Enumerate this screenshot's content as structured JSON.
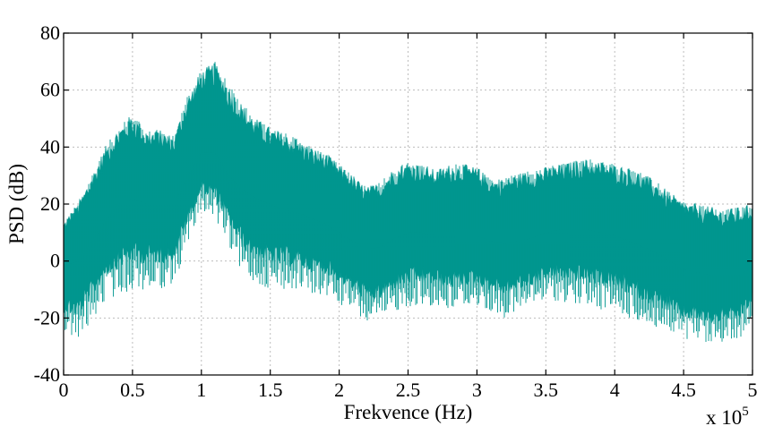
{
  "chart_data": {
    "type": "area",
    "title": "",
    "xlabel": "Frekvence (Hz)",
    "ylabel": "PSD (dB)",
    "x_multiplier_label": "x 10",
    "x_multiplier_exponent": "5",
    "xlim": [
      0,
      5
    ],
    "ylim": [
      -40,
      80
    ],
    "xticks": [
      "0",
      "0.5",
      "1",
      "1.5",
      "2",
      "2.5",
      "3",
      "3.5",
      "4",
      "4.5",
      "5"
    ],
    "yticks": [
      "-40",
      "-20",
      "0",
      "20",
      "40",
      "60",
      "80"
    ],
    "grid": true,
    "color": "#00968f",
    "series": [
      {
        "x": [
          0,
          0.1,
          0.2,
          0.3,
          0.4,
          0.5,
          0.6,
          0.7,
          0.8,
          0.9,
          1.0,
          1.1,
          1.2,
          1.3,
          1.4,
          1.5,
          1.6,
          1.7,
          1.8,
          1.9,
          2.0,
          2.1,
          2.2,
          2.3,
          2.4,
          2.5,
          2.6,
          2.7,
          2.8,
          2.9,
          3.0,
          3.1,
          3.2,
          3.3,
          3.4,
          3.5,
          3.6,
          3.7,
          3.8,
          3.9,
          4.0,
          4.1,
          4.2,
          4.3,
          4.4,
          4.5,
          4.6,
          4.7,
          4.8,
          4.9,
          5.0
        ],
        "upper": [
          14,
          20,
          30,
          40,
          47,
          52,
          46,
          46,
          44,
          58,
          67,
          70,
          62,
          55,
          50,
          47,
          45,
          43,
          40,
          38,
          34,
          30,
          26,
          28,
          33,
          35,
          34,
          32,
          34,
          34,
          33,
          29,
          29,
          31,
          32,
          33,
          34,
          35,
          36,
          35,
          34,
          33,
          31,
          28,
          24,
          21,
          20,
          19,
          18,
          19,
          20
        ],
        "lower": [
          -25,
          -28,
          -22,
          -14,
          -12,
          -10,
          -10,
          -10,
          -8,
          5,
          18,
          15,
          5,
          -5,
          -8,
          -10,
          -10,
          -10,
          -12,
          -12,
          -15,
          -18,
          -22,
          -22,
          -18,
          -16,
          -16,
          -16,
          -18,
          -16,
          -16,
          -18,
          -20,
          -18,
          -16,
          -14,
          -14,
          -15,
          -16,
          -17,
          -18,
          -20,
          -22,
          -24,
          -26,
          -28,
          -28,
          -30,
          -28,
          -28,
          -20
        ],
        "mean": [
          -2,
          0,
          6,
          14,
          20,
          22,
          20,
          20,
          20,
          30,
          38,
          38,
          30,
          25,
          22,
          20,
          18,
          17,
          15,
          13,
          10,
          7,
          4,
          5,
          8,
          10,
          10,
          9,
          9,
          9,
          9,
          7,
          6,
          7,
          8,
          10,
          11,
          11,
          11,
          10,
          9,
          7,
          5,
          3,
          0,
          -3,
          -4,
          -5,
          -5,
          -5,
          -2
        ]
      }
    ]
  }
}
